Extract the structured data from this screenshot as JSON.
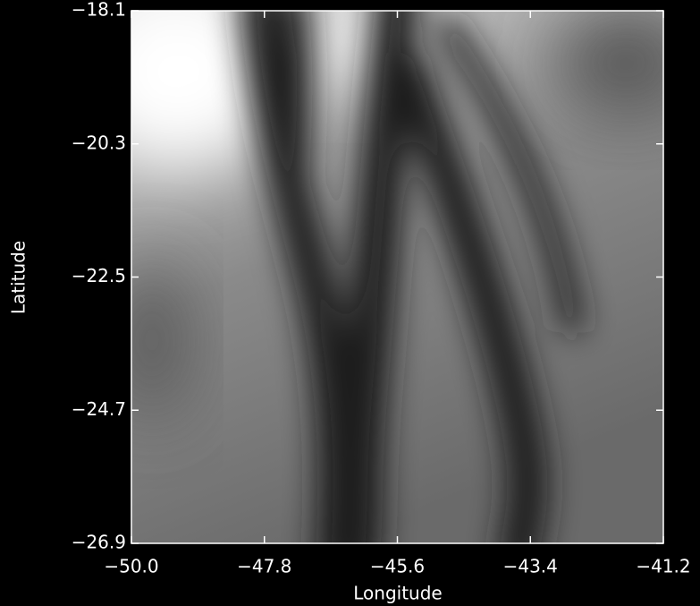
{
  "chart_data": {
    "type": "image",
    "x_label": "Longitude",
    "y_label": "Latitude",
    "xlim": [
      -50.0,
      -41.2
    ],
    "xticks": [
      {
        "value": -50.0,
        "label": "−50.0"
      },
      {
        "value": -47.8,
        "label": "−47.8"
      },
      {
        "value": -45.6,
        "label": "−45.6"
      },
      {
        "value": -43.4,
        "label": "−43.4"
      },
      {
        "value": -41.2,
        "label": "−41.2"
      }
    ],
    "ylim": [
      -26.9,
      -18.1
    ],
    "yticks": [
      {
        "value": -18.1,
        "label": "−18.1"
      },
      {
        "value": -20.3,
        "label": "−20.3"
      },
      {
        "value": -22.5,
        "label": "−22.5"
      },
      {
        "value": -24.7,
        "label": "−24.7"
      },
      {
        "value": -26.9,
        "label": "−26.9"
      }
    ]
  }
}
